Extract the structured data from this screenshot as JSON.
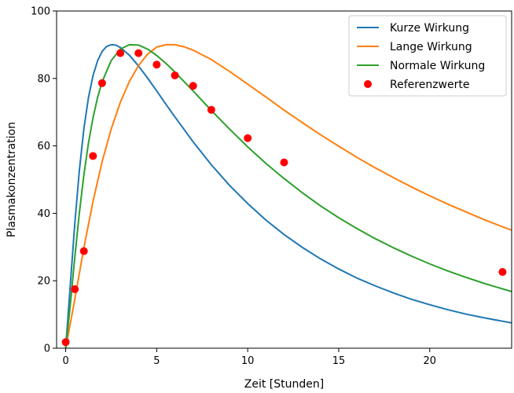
{
  "chart_data": {
    "type": "line",
    "xlabel": "Zeit [Stunden]",
    "ylabel": "Plasmakonzentration",
    "xlim": [
      -0.5,
      24.5
    ],
    "ylim": [
      0,
      100
    ],
    "xticks": [
      0,
      5,
      10,
      15,
      20
    ],
    "yticks": [
      0,
      20,
      40,
      60,
      80,
      100
    ],
    "grid": false,
    "legend_position": "top-right",
    "series": [
      {
        "name": "Kurze Wirkung",
        "kind": "line",
        "color": "#1f77b4",
        "x": [
          0,
          0.25,
          0.5,
          0.75,
          1,
          1.25,
          1.5,
          1.75,
          2,
          2.25,
          2.5,
          2.75,
          3,
          3.5,
          4,
          4.5,
          5,
          5.5,
          6,
          7,
          8,
          9,
          10,
          11,
          12,
          13,
          14,
          15,
          16,
          17,
          18,
          19,
          20,
          21,
          22,
          23,
          24,
          24.5
        ],
        "y": [
          0,
          18.5,
          36.9,
          52.7,
          65.1,
          74.3,
          80.8,
          85.2,
          88.0,
          89.5,
          90.0,
          89.9,
          89.2,
          86.9,
          83.7,
          80.1,
          76.3,
          72.4,
          68.6,
          61.2,
          54.4,
          48.3,
          42.9,
          38.0,
          33.7,
          29.9,
          26.5,
          23.5,
          20.8,
          18.5,
          16.4,
          14.5,
          12.9,
          11.4,
          10.1,
          9.0,
          8.0,
          7.5
        ]
      },
      {
        "name": "Lange Wirkung",
        "kind": "line",
        "color": "#ff7f0e",
        "x": [
          0,
          0.5,
          1,
          1.5,
          2,
          2.5,
          3,
          3.5,
          4,
          4.5,
          5,
          5.5,
          6,
          6.5,
          7,
          8,
          9,
          10,
          11,
          12,
          13,
          14,
          15,
          16,
          17,
          18,
          19,
          20,
          21,
          22,
          23,
          24,
          24.5
        ],
        "y": [
          0,
          14.5,
          29.8,
          43.5,
          55.3,
          65.0,
          72.9,
          79.1,
          83.8,
          87.2,
          89.3,
          90.0,
          90.0,
          89.4,
          88.4,
          85.6,
          82.1,
          78.3,
          74.5,
          70.6,
          66.9,
          63.3,
          59.9,
          56.6,
          53.5,
          50.6,
          47.8,
          45.2,
          42.7,
          40.4,
          38.1,
          36.0,
          35.0
        ]
      },
      {
        "name": "Normale Wirkung",
        "kind": "line",
        "color": "#2ca02c",
        "x": [
          0,
          0.25,
          0.5,
          0.75,
          1,
          1.25,
          1.5,
          1.75,
          2,
          2.5,
          3,
          3.5,
          4,
          4.5,
          5,
          5.5,
          6,
          7,
          8,
          9,
          10,
          11,
          12,
          13,
          14,
          15,
          16,
          17,
          18,
          19,
          20,
          21,
          22,
          23,
          24,
          24.5
        ],
        "y": [
          0,
          12.7,
          26.9,
          40.1,
          51.4,
          60.8,
          68.3,
          74.3,
          79.0,
          85.3,
          88.7,
          90.0,
          89.9,
          88.7,
          86.8,
          84.5,
          81.9,
          76.3,
          70.5,
          65.0,
          59.7,
          54.8,
          50.3,
          46.1,
          42.2,
          38.7,
          35.5,
          32.5,
          29.8,
          27.3,
          25.0,
          22.9,
          21.0,
          19.2,
          17.6,
          16.8
        ]
      },
      {
        "name": "Referenzwerte",
        "kind": "scatter",
        "color": "#ff0000",
        "x": [
          0,
          0.5,
          1,
          1.5,
          2,
          3,
          4,
          5,
          6,
          7,
          8,
          10,
          12,
          24
        ],
        "y": [
          1.8,
          17.5,
          28.8,
          57.0,
          78.6,
          87.5,
          87.5,
          84.1,
          80.9,
          77.8,
          70.7,
          62.3,
          55.1,
          22.6
        ]
      }
    ]
  }
}
